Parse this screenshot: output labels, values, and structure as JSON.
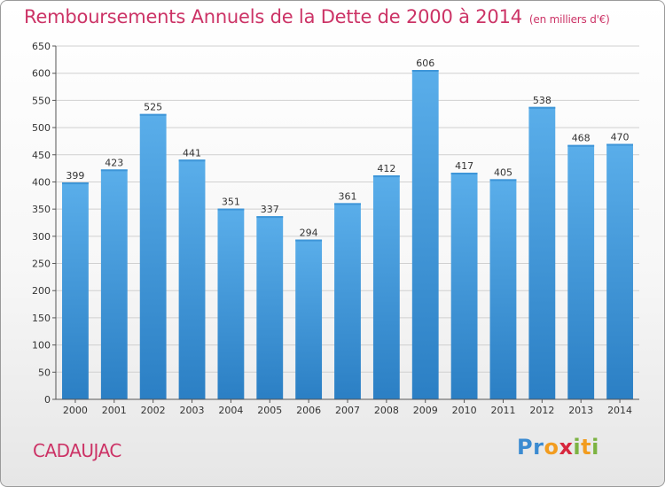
{
  "header": {
    "title": "Remboursements Annuels de la Dette de 2000 à 2014",
    "unit_note": "(en milliers d'€)"
  },
  "footer": {
    "commune": "CADAUJAC",
    "logo_text": "Proxiti"
  },
  "colors": {
    "title": "#cc3366",
    "bar_top": "#5aaeea",
    "bar_bottom": "#2b7fc4",
    "grid": "#d0d0d0"
  },
  "chart_data": {
    "type": "bar",
    "title": "Remboursements Annuels de la Dette de 2000 à 2014",
    "subtitle": "(en milliers d'€)",
    "categories": [
      "2000",
      "2001",
      "2002",
      "2003",
      "2004",
      "2005",
      "2006",
      "2007",
      "2008",
      "2009",
      "2010",
      "2011",
      "2012",
      "2013",
      "2014"
    ],
    "values": [
      399,
      423,
      525,
      441,
      351,
      337,
      294,
      361,
      412,
      606,
      417,
      405,
      538,
      468,
      470
    ],
    "ylim": [
      0,
      650
    ],
    "yticks": [
      0,
      50,
      100,
      150,
      200,
      250,
      300,
      350,
      400,
      450,
      500,
      550,
      600,
      650
    ],
    "xlabel": "",
    "ylabel": "",
    "grid": true,
    "legend": "none"
  }
}
